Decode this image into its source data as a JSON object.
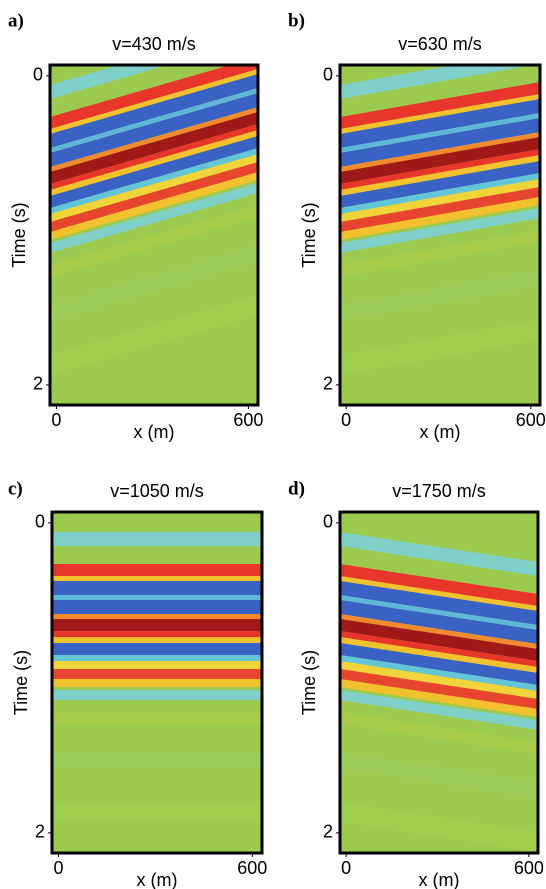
{
  "chart_data": [
    {
      "type": "image",
      "panel": "a)",
      "title": "v=430 m/s",
      "xlabel": "x (m)",
      "ylabel": "Time (s)",
      "xlim": [
        -20,
        630
      ],
      "ylim": [
        -0.07,
        2.13
      ],
      "xticks": [
        0,
        600
      ],
      "yticks": [
        0,
        2
      ]
    },
    {
      "type": "image",
      "panel": "b)",
      "title": "v=630 m/s",
      "xlabel": "x (m)",
      "ylabel": "Time (s)",
      "xlim": [
        -20,
        630
      ],
      "ylim": [
        -0.07,
        2.13
      ],
      "xticks": [
        0,
        600
      ],
      "yticks": [
        0,
        2
      ]
    },
    {
      "type": "image",
      "panel": "c)",
      "title": "v=1050 m/s",
      "xlabel": "x (m)",
      "ylabel": "Time (s)",
      "xlim": [
        -20,
        630
      ],
      "ylim": [
        -0.07,
        2.13
      ],
      "xticks": [
        0,
        600
      ],
      "yticks": [
        0,
        2
      ]
    },
    {
      "type": "image",
      "panel": "d)",
      "title": "v=1750 m/s",
      "xlabel": "x (m)",
      "ylabel": "Time (s)",
      "xlim": [
        -20,
        630
      ],
      "ylim": [
        -0.07,
        2.13
      ],
      "xticks": [
        0,
        600
      ],
      "yticks": [
        0,
        2
      ]
    }
  ]
}
